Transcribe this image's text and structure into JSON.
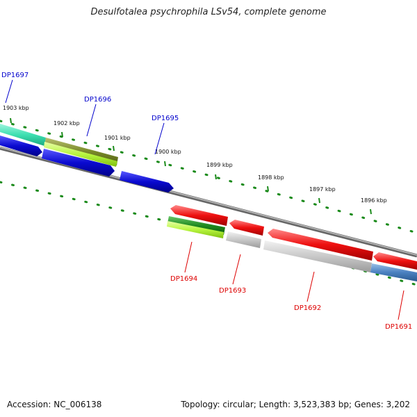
{
  "title": "Desulfotalea psychrophila LSv54, complete genome",
  "footer": {
    "accession": "Accession: NC_006138",
    "summary": "Topology: circular; Length: 3,523,383 bp; Genes: 3,202"
  },
  "colors": {
    "forward_label": "#0000cc",
    "reverse_label": "#dd0000",
    "tick": "#1a8a1a",
    "backbone": "#888888"
  },
  "scale": {
    "unit": "kbp",
    "ticks": [
      {
        "label": "1903 kbp"
      },
      {
        "label": "1902 kbp"
      },
      {
        "label": "1901 kbp"
      },
      {
        "label": "1900 kbp"
      },
      {
        "label": "1899 kbp"
      },
      {
        "label": "1898 kbp"
      },
      {
        "label": "1897 kbp"
      },
      {
        "label": "1896 kbp"
      }
    ]
  },
  "genes": {
    "forward": [
      {
        "label": "DP1697",
        "color": "#3de0b0"
      },
      {
        "label": "DP1696",
        "color": "#7a8a2a"
      },
      {
        "label": "DP1695",
        "color": "#0a0ad0"
      }
    ],
    "reverse": [
      {
        "label": "DP1694",
        "color": "#ee1010"
      },
      {
        "label": "DP1693",
        "color": "#ee1010"
      },
      {
        "label": "DP1692",
        "color": "#ee1010"
      },
      {
        "label": "DP1691",
        "color": "#ee1010"
      }
    ]
  }
}
